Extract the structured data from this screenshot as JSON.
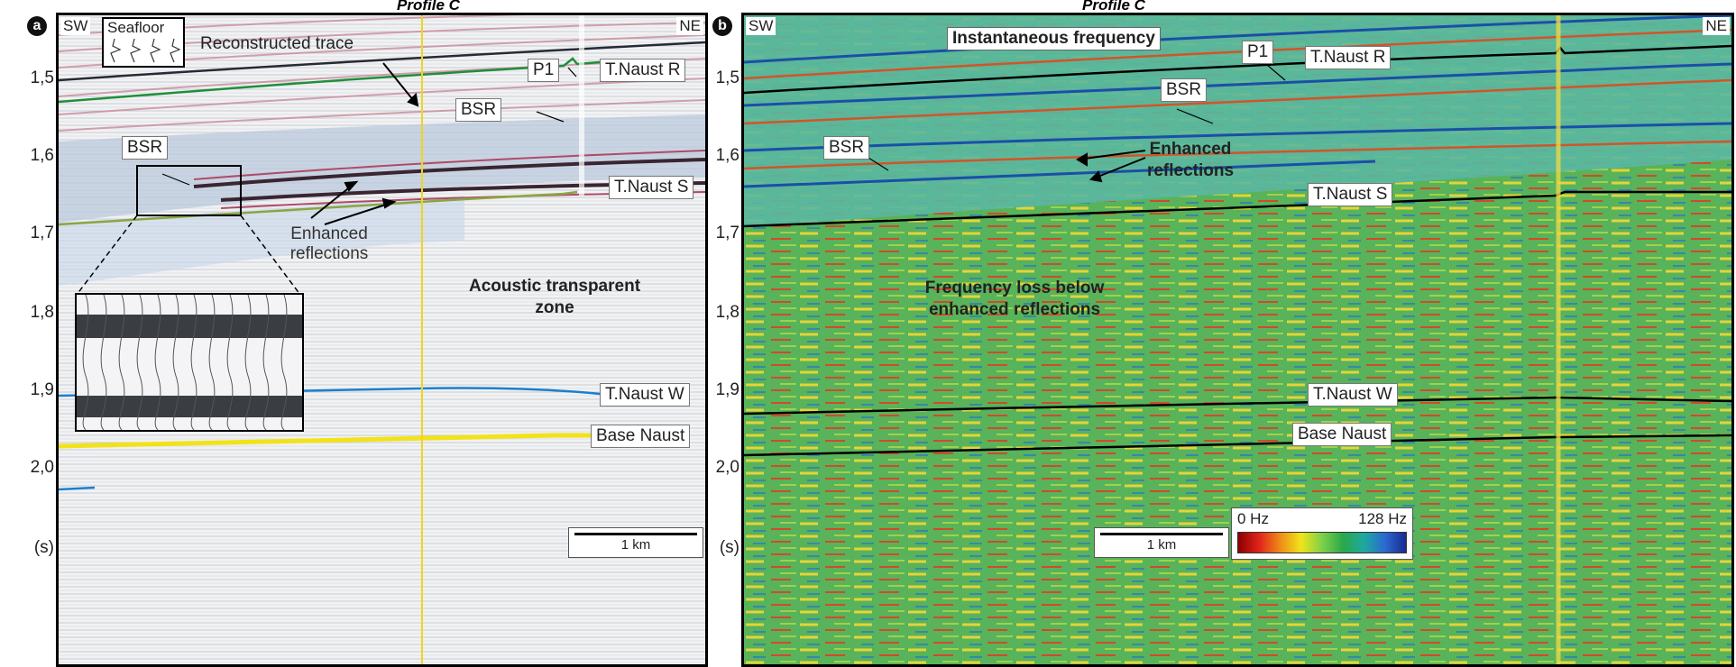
{
  "panel_a": {
    "badge": "a",
    "title": "Profile C",
    "sw": "SW",
    "ne": "NE",
    "seafloor": "Seafloor",
    "reconstructed_trace": "Reconstructed trace",
    "p1": "P1",
    "t_naust_r": "T.Naust R",
    "bsr_upper": "BSR",
    "bsr_left": "BSR",
    "t_naust_s": "T.Naust S",
    "enhanced_line1": "Enhanced",
    "enhanced_line2": "reflections",
    "acoustic_line1": "Acoustic transparent",
    "acoustic_line2": "zone",
    "t_naust_w": "T.Naust W",
    "base_naust": "Base Naust",
    "scale": "1 km"
  },
  "panel_b": {
    "badge": "b",
    "title": "Profile C",
    "sw": "SW",
    "ne": "NE",
    "inst_freq": "Instantaneous frequency",
    "p1": "P1",
    "t_naust_r": "T.Naust R",
    "bsr_upper": "BSR",
    "bsr_left": "BSR",
    "enhanced_line1": "Enhanced",
    "enhanced_line2": "reflections",
    "t_naust_s": "T.Naust S",
    "freq_loss_line1": "Frequency loss below",
    "freq_loss_line2": "enhanced reflections",
    "t_naust_w": "T.Naust W",
    "base_naust": "Base Naust",
    "scale": "1 km",
    "colorbar_min": "0 Hz",
    "colorbar_max": "128 Hz"
  },
  "y_axis": {
    "ticks": [
      "1,5",
      "1,6",
      "1,7",
      "1,8",
      "1,9",
      "2,0"
    ],
    "unit": "(s)"
  },
  "colors": {
    "green_horizon": "#1f8f3a",
    "blue_horizon": "#1a7fd0",
    "yellow_horizon": "#f2e21a",
    "frame": "#000000"
  }
}
